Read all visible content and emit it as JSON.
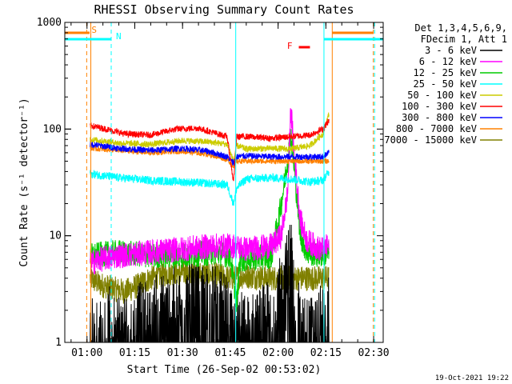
{
  "chart_data": {
    "type": "line",
    "title": "RHESSI Observing Summary Count Rates",
    "xlabel": "Start Time (26-Sep-02 00:53:02)",
    "ylabel": "Count Rate (s⁻¹ detector⁻¹)",
    "ylog": true,
    "ylim": [
      1,
      1000
    ],
    "xlim_minutes": [
      53.03,
      153.0
    ],
    "yticks": [
      {
        "v": 1,
        "label": "1"
      },
      {
        "v": 10,
        "label": "10"
      },
      {
        "v": 100,
        "label": "100"
      },
      {
        "v": 1000,
        "label": "1000"
      }
    ],
    "xticks": [
      {
        "m": 60,
        "label": "01:00"
      },
      {
        "m": 75,
        "label": "01:15"
      },
      {
        "m": 90,
        "label": "01:30"
      },
      {
        "m": 105,
        "label": "01:45"
      },
      {
        "m": 120,
        "label": "02:00"
      },
      {
        "m": 135,
        "label": "02:15"
      },
      {
        "m": 150,
        "label": "02:30"
      }
    ],
    "legend": {
      "header": [
        "Det 1,3,4,5,6,9,",
        "FDecim 1, Att 1"
      ],
      "position": "right"
    },
    "series": [
      {
        "name": "3 - 6 keV",
        "color": "#000000",
        "base": 1.5,
        "noise": 0.45,
        "points": [
          [
            61,
            1.0
          ],
          [
            64,
            1.0
          ],
          [
            67,
            1.2
          ],
          [
            72,
            1.1
          ],
          [
            80,
            1.5
          ],
          [
            86,
            1.8
          ],
          [
            92,
            2.0
          ],
          [
            100,
            2.0
          ],
          [
            105,
            1.4
          ],
          [
            110,
            1.0
          ],
          [
            116,
            1.3
          ],
          [
            120,
            2.0
          ],
          [
            122,
            3.0
          ],
          [
            124,
            6.0
          ],
          [
            125,
            3.0
          ],
          [
            127,
            1.0
          ],
          [
            131,
            1.0
          ],
          [
            134,
            1.3
          ],
          [
            136,
            1.6
          ]
        ]
      },
      {
        "name": "6 - 12 keV",
        "color": "#ff00ff",
        "base": 8,
        "noise": 0.12,
        "points": [
          [
            61,
            5.5
          ],
          [
            64,
            6.0
          ],
          [
            70,
            6.5
          ],
          [
            80,
            7.0
          ],
          [
            90,
            7.5
          ],
          [
            100,
            8.0
          ],
          [
            106,
            8.0
          ],
          [
            110,
            7.5
          ],
          [
            118,
            8.0
          ],
          [
            121,
            10.0
          ],
          [
            123,
            25.0
          ],
          [
            124,
            160.0
          ],
          [
            125,
            60.0
          ],
          [
            127,
            14.0
          ],
          [
            129,
            9.0
          ],
          [
            133,
            7.5
          ],
          [
            136,
            8.0
          ]
        ]
      },
      {
        "name": "12 - 25 keV",
        "color": "#00cc00",
        "base": 6.5,
        "noise": 0.12,
        "points": [
          [
            61,
            6.5
          ],
          [
            70,
            7.0
          ],
          [
            80,
            6.5
          ],
          [
            90,
            6.5
          ],
          [
            100,
            7.0
          ],
          [
            105,
            6.5
          ],
          [
            107,
            2.3
          ],
          [
            108,
            6.0
          ],
          [
            110,
            6.0
          ],
          [
            118,
            6.5
          ],
          [
            121,
            20.0
          ],
          [
            123,
            50.0
          ],
          [
            124,
            90.0
          ],
          [
            125,
            45.0
          ],
          [
            127,
            10.0
          ],
          [
            129,
            7.0
          ],
          [
            133,
            6.5
          ],
          [
            136,
            7.0
          ]
        ]
      },
      {
        "name": "25 - 50 keV",
        "color": "#00ffff",
        "base": 35,
        "noise": 0.04,
        "points": [
          [
            61,
            38
          ],
          [
            70,
            35
          ],
          [
            80,
            33
          ],
          [
            90,
            32
          ],
          [
            98,
            31
          ],
          [
            104,
            30
          ],
          [
            106,
            20
          ],
          [
            107,
            28
          ],
          [
            110,
            34
          ],
          [
            118,
            35
          ],
          [
            124,
            34
          ],
          [
            130,
            32
          ],
          [
            134,
            33
          ],
          [
            136,
            40
          ]
        ]
      },
      {
        "name": "50 - 100 keV",
        "color": "#cccc00",
        "base": 70,
        "noise": 0.03,
        "points": [
          [
            61,
            80
          ],
          [
            70,
            74
          ],
          [
            80,
            72
          ],
          [
            90,
            78
          ],
          [
            98,
            76
          ],
          [
            104,
            72
          ],
          [
            106,
            50
          ],
          [
            107,
            70
          ],
          [
            110,
            65
          ],
          [
            118,
            66
          ],
          [
            124,
            65
          ],
          [
            130,
            70
          ],
          [
            134,
            90
          ],
          [
            136,
            140
          ]
        ]
      },
      {
        "name": "100 - 300 keV",
        "color": "#ff0000",
        "base": 100,
        "noise": 0.03,
        "points": [
          [
            61,
            108
          ],
          [
            66,
            100
          ],
          [
            72,
            90
          ],
          [
            80,
            88
          ],
          [
            88,
            100
          ],
          [
            95,
            102
          ],
          [
            100,
            92
          ],
          [
            104,
            85
          ],
          [
            106,
            32
          ],
          [
            107,
            85
          ],
          [
            110,
            85
          ],
          [
            118,
            82
          ],
          [
            124,
            85
          ],
          [
            130,
            88
          ],
          [
            134,
            100
          ],
          [
            136,
            120
          ]
        ]
      },
      {
        "name": "300 - 800 keV",
        "color": "#0000ff",
        "base": 70,
        "noise": 0.03,
        "points": [
          [
            61,
            72
          ],
          [
            70,
            66
          ],
          [
            80,
            63
          ],
          [
            90,
            66
          ],
          [
            98,
            62
          ],
          [
            104,
            55
          ],
          [
            106,
            48
          ],
          [
            107,
            55
          ],
          [
            110,
            56
          ],
          [
            118,
            55
          ],
          [
            124,
            55
          ],
          [
            130,
            55
          ],
          [
            134,
            55
          ],
          [
            136,
            60
          ]
        ]
      },
      {
        "name": "800 - 7000 keV",
        "color": "#ff8000",
        "base": 65,
        "noise": 0.025,
        "points": [
          [
            61,
            66
          ],
          [
            70,
            63
          ],
          [
            80,
            60
          ],
          [
            90,
            62
          ],
          [
            98,
            58
          ],
          [
            104,
            52
          ],
          [
            106,
            45
          ],
          [
            107,
            50
          ],
          [
            110,
            50
          ],
          [
            118,
            50
          ],
          [
            124,
            50
          ],
          [
            130,
            50
          ],
          [
            134,
            50
          ],
          [
            136,
            50
          ]
        ]
      },
      {
        "name": "7000 - 15000 keV",
        "color": "#808000",
        "base": 4,
        "noise": 0.12,
        "points": [
          [
            61,
            4.0
          ],
          [
            64,
            3.5
          ],
          [
            68,
            3.2
          ],
          [
            72,
            3.0
          ],
          [
            76,
            3.4
          ],
          [
            80,
            4.0
          ],
          [
            86,
            4.5
          ],
          [
            92,
            4.5
          ],
          [
            100,
            4.3
          ],
          [
            105,
            4.0
          ],
          [
            110,
            4.2
          ],
          [
            118,
            4.0
          ],
          [
            124,
            4.0
          ],
          [
            130,
            4.0
          ],
          [
            134,
            4.0
          ],
          [
            136,
            4.0
          ]
        ]
      }
    ],
    "markers": [
      {
        "label": "S",
        "color": "#ff8000",
        "time": 59.9,
        "style": "dashed",
        "bar": [
          53.03,
          60.8
        ]
      },
      {
        "label": "N",
        "color": "#00ffff",
        "time": 67.6,
        "style": "dashed",
        "bar": [
          53.03,
          67.6
        ]
      },
      {
        "label": "F",
        "color": "#ff0000",
        "bar": [
          126.5,
          130.0
        ]
      }
    ],
    "region_lines": [
      {
        "time": 61.2,
        "color": "#ff8000"
      },
      {
        "time": 106.7,
        "color": "#00ffff"
      },
      {
        "time": 134.4,
        "color": "#00ffff"
      },
      {
        "time": 137.0,
        "color": "#ff8000"
      },
      {
        "time": 149.9,
        "color": "#ff8000",
        "style": "dashed"
      },
      {
        "time": 150.3,
        "color": "#00ffff",
        "style": "dashed"
      }
    ],
    "right_bars": [
      {
        "color": "#ff8000",
        "range": [
          137.0,
          150.0
        ]
      },
      {
        "color": "#00ffff",
        "range": [
          134.4,
          153.0
        ]
      }
    ]
  },
  "footer": {
    "timestamp": "19-Oct-2021 19:22"
  }
}
